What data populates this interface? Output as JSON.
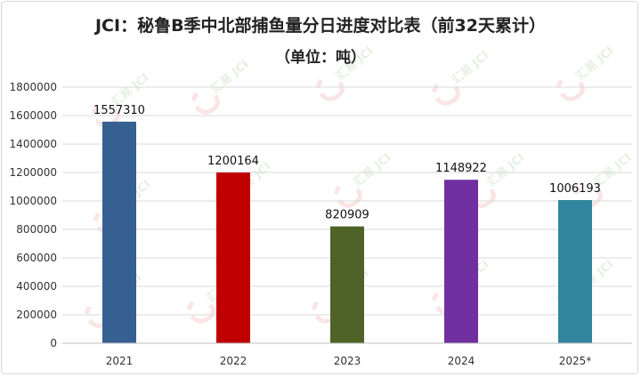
{
  "chart_data": {
    "type": "bar",
    "title": "JCI：秘鲁B季中北部捕鱼量分日进度对比表（前32天累计）",
    "subtitle": "（单位：吨）",
    "categories": [
      "2021",
      "2022",
      "2023",
      "2024",
      "2025*"
    ],
    "values": [
      1557310,
      1200164,
      820909,
      1148922,
      1006193
    ],
    "colors": [
      "#365f92",
      "#c00000",
      "#4f6228",
      "#7030a0",
      "#31859c"
    ],
    "ylim": [
      0,
      1800000
    ],
    "yticks": [
      0,
      200000,
      400000,
      600000,
      800000,
      1000000,
      1200000,
      1400000,
      1600000,
      1800000
    ],
    "grid": true,
    "watermark": "汇易 JCI"
  }
}
